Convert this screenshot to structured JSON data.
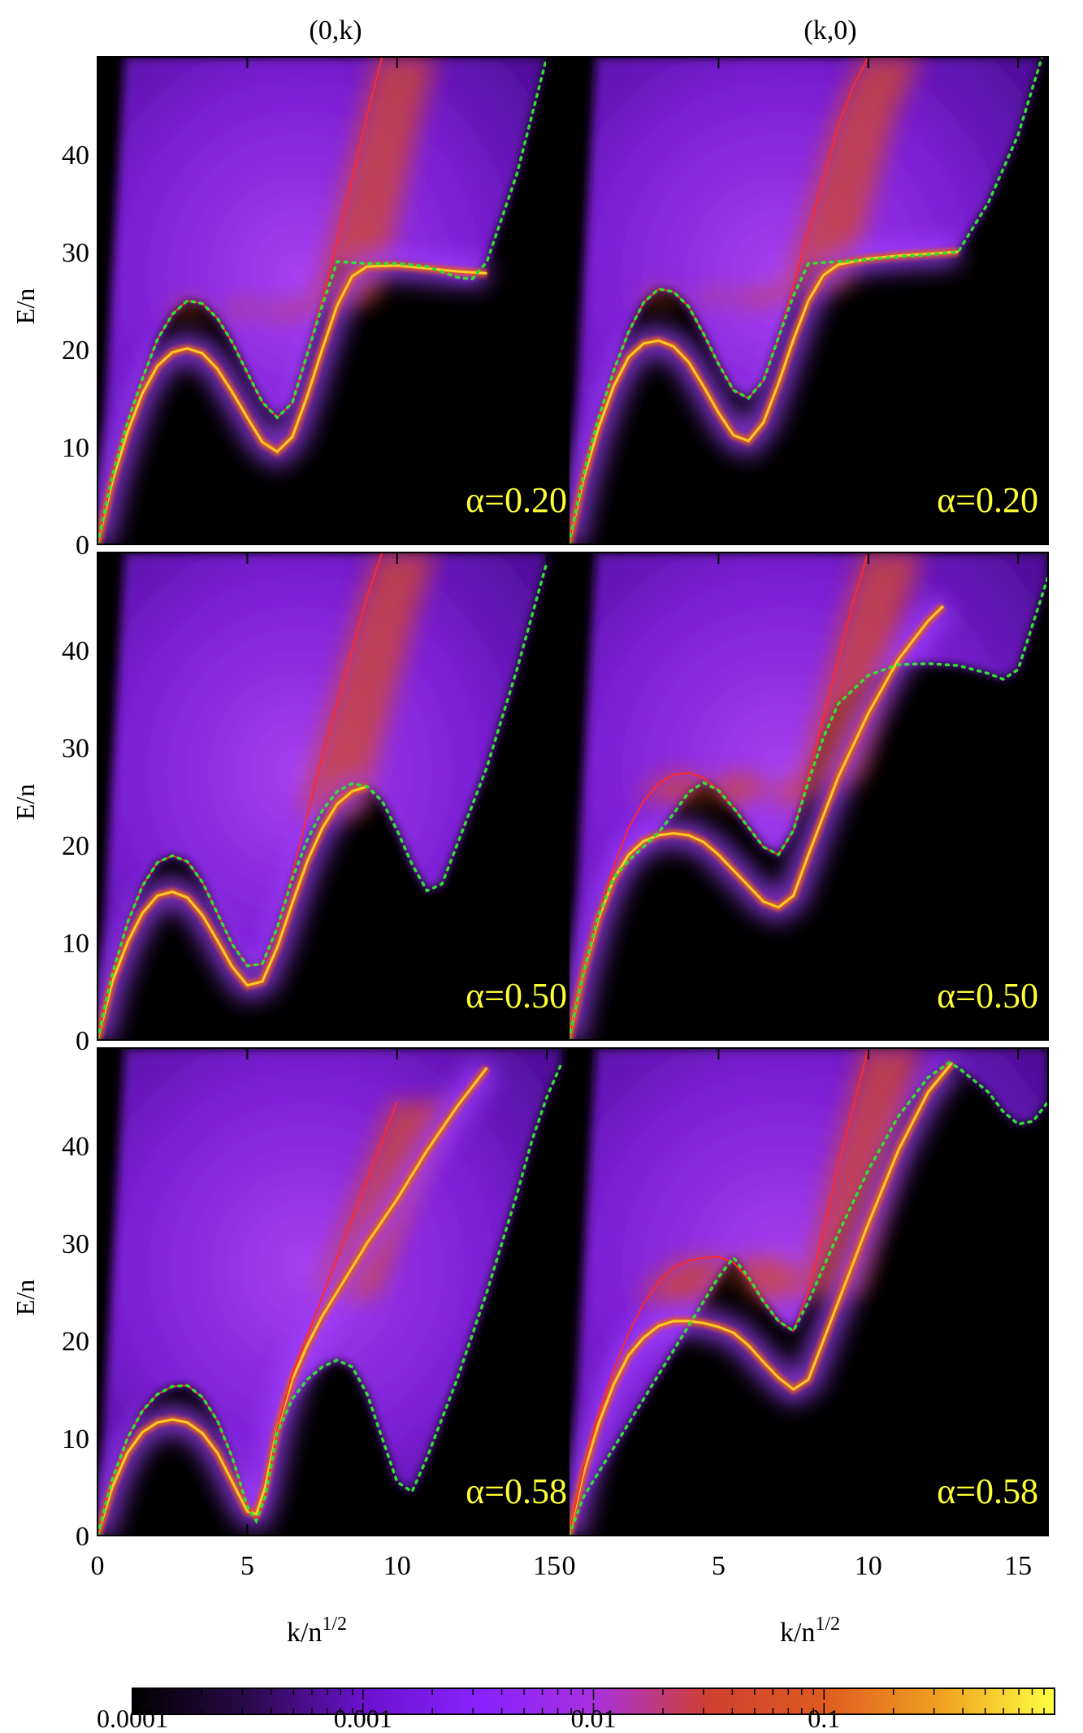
{
  "chart_data": [
    {
      "type": "heatmap",
      "column": "(0,k)",
      "annotation": "α=0.20",
      "xlabel": "k/n",
      "xlabel_superscript": "1/2",
      "ylabel": "E/n",
      "xlim": [
        0,
        16
      ],
      "ylim": [
        0,
        50
      ],
      "y_ticks": [
        "0",
        "10",
        "20",
        "30",
        "40"
      ],
      "x_ticks": [],
      "series": [
        {
          "name": "",
          "color": "#ffcc22",
          "x": [
            0,
            0.5,
            1,
            1.5,
            2,
            2.5,
            3,
            3.5,
            4,
            4.5,
            5,
            5.5,
            6,
            6.5,
            7,
            7.5,
            8,
            8.5,
            9,
            10,
            11,
            12,
            13
          ],
          "y": [
            0,
            6.5,
            11.5,
            15.5,
            18.3,
            19.7,
            20.1,
            19.6,
            18,
            15.6,
            13,
            10.5,
            9.5,
            11,
            15.2,
            20,
            24.5,
            27.5,
            28.5,
            28.6,
            28.3,
            28,
            27.8
          ]
        },
        {
          "name": "",
          "color": "#ff2a2a",
          "x": [
            0,
            0.5,
            1,
            1.5,
            2,
            2.5,
            3,
            3.5,
            4,
            4.5,
            5,
            5.5,
            6,
            6.5,
            7,
            7.5,
            8,
            8.5,
            9,
            9.5
          ],
          "y": [
            0,
            7,
            12.5,
            17,
            21,
            23.6,
            25,
            24.7,
            23.2,
            20.7,
            17.6,
            14.6,
            13,
            14.5,
            19.5,
            25,
            31,
            37.5,
            44,
            50
          ]
        },
        {
          "name": "",
          "color": "#33dd33",
          "x": [
            0,
            0.5,
            1,
            1.5,
            2,
            2.5,
            3,
            3.5,
            4,
            4.5,
            5,
            5.5,
            6,
            6.5,
            7,
            7.5,
            8,
            9,
            10,
            11,
            12,
            12.5,
            13,
            14,
            15
          ],
          "y": [
            0,
            7,
            12.5,
            17,
            21,
            23.6,
            25,
            24.7,
            23.2,
            20.7,
            17.6,
            14.6,
            13,
            14.5,
            19.5,
            24.5,
            29,
            28.8,
            28.8,
            28.5,
            27.4,
            27.2,
            29,
            38,
            50
          ]
        }
      ]
    },
    {
      "type": "heatmap",
      "column": "(k,0)",
      "annotation": "α=0.20",
      "xlabel": "k/n",
      "xlabel_superscript": "1/2",
      "ylabel": "",
      "xlim": [
        0,
        16
      ],
      "ylim": [
        0,
        50
      ],
      "y_ticks": [],
      "x_ticks": [],
      "series": [
        {
          "name": "",
          "color": "#ffcc22",
          "x": [
            0,
            0.5,
            1,
            1.5,
            2,
            2.5,
            3,
            3.5,
            4,
            4.5,
            5,
            5.5,
            6,
            6.5,
            7,
            7.5,
            8,
            8.5,
            9,
            10,
            11,
            12,
            13
          ],
          "y": [
            0,
            6.8,
            12,
            16.2,
            19.2,
            20.6,
            20.9,
            20.3,
            18.7,
            16.2,
            13.5,
            11.2,
            10.6,
            12.5,
            16.5,
            21,
            25,
            27.6,
            28.7,
            29.3,
            29.6,
            29.8,
            30
          ]
        },
        {
          "name": "",
          "color": "#ff2a2a",
          "x": [
            0,
            0.5,
            1,
            1.5,
            2,
            2.5,
            3,
            3.5,
            4,
            4.5,
            5,
            5.5,
            6,
            6.5,
            7,
            7.5,
            8,
            8.5,
            9,
            9.5,
            10
          ],
          "y": [
            0,
            7.2,
            13,
            17.8,
            21.8,
            24.8,
            26.2,
            25.9,
            24.4,
            21.6,
            18.5,
            15.8,
            15,
            16.8,
            21.2,
            26.5,
            32,
            37.5,
            43,
            47,
            50
          ]
        },
        {
          "name": "",
          "color": "#33dd33",
          "x": [
            0,
            0.5,
            1,
            1.5,
            2,
            2.5,
            3,
            3.5,
            4,
            4.5,
            5,
            5.5,
            6,
            6.5,
            7,
            7.5,
            8,
            9,
            10,
            11,
            12,
            13,
            14,
            15,
            15.8
          ],
          "y": [
            0,
            7.2,
            13,
            17.8,
            21.8,
            24.8,
            26.2,
            25.9,
            24.4,
            21.6,
            18.5,
            15.8,
            15,
            16.8,
            21.2,
            25.5,
            28.8,
            29,
            29.2,
            29.5,
            29.7,
            30,
            35,
            42,
            50
          ]
        }
      ]
    },
    {
      "type": "heatmap",
      "column": "(0,k)",
      "annotation": "α=0.50",
      "xlabel": "k/n",
      "xlabel_superscript": "1/2",
      "ylabel": "E/n",
      "xlim": [
        0,
        16
      ],
      "ylim": [
        0,
        50
      ],
      "y_ticks": [
        "0",
        "10",
        "20",
        "30",
        "40"
      ],
      "x_ticks": [],
      "series": [
        {
          "name": "",
          "color": "#ffcc22",
          "x": [
            0,
            0.5,
            1,
            1.5,
            2,
            2.5,
            3,
            3.5,
            4,
            4.5,
            5,
            5.5,
            6,
            6.5,
            7,
            7.5,
            8,
            8.5,
            9
          ],
          "y": [
            0,
            6,
            10,
            13,
            14.8,
            15.2,
            14.6,
            12.8,
            10.2,
            7.5,
            5.6,
            6,
            9.5,
            14,
            18.3,
            21.7,
            24.2,
            25.5,
            26
          ]
        },
        {
          "name": "",
          "color": "#ff2a2a",
          "x": [
            0,
            0.5,
            1,
            1.5,
            2,
            2.5,
            3,
            3.5,
            4,
            4.5,
            5,
            5.5,
            6,
            6.5,
            7,
            7.5,
            8,
            8.5,
            9,
            9.5
          ],
          "y": [
            0,
            6.8,
            12,
            15.8,
            18.2,
            18.9,
            18.3,
            16.2,
            13,
            9.8,
            7.6,
            7.8,
            11.5,
            17,
            23,
            29,
            34.5,
            40,
            45.5,
            50
          ]
        },
        {
          "name": "",
          "color": "#33dd33",
          "x": [
            0,
            0.5,
            1,
            1.5,
            2,
            2.5,
            3,
            3.5,
            4,
            4.5,
            5,
            5.5,
            6,
            6.5,
            7,
            7.5,
            8,
            8.5,
            9,
            9.5,
            10,
            10.5,
            11,
            11.5,
            12,
            13,
            14,
            15
          ],
          "y": [
            0,
            6.8,
            12,
            15.8,
            18.2,
            18.9,
            18.3,
            16.2,
            13,
            9.8,
            7.6,
            7.8,
            11.5,
            16.5,
            20.5,
            23.5,
            25.5,
            26.3,
            26,
            24.5,
            21.5,
            18,
            15.3,
            16,
            20,
            28,
            38,
            49
          ]
        }
      ]
    },
    {
      "type": "heatmap",
      "column": "(k,0)",
      "annotation": "α=0.50",
      "xlabel": "k/n",
      "xlabel_superscript": "1/2",
      "ylabel": "",
      "xlim": [
        0,
        16
      ],
      "ylim": [
        0,
        50
      ],
      "y_ticks": [],
      "x_ticks": [],
      "series": [
        {
          "name": "",
          "color": "#ffcc22",
          "x": [
            0,
            0.5,
            1,
            1.5,
            2,
            2.5,
            3,
            3.5,
            4,
            4.5,
            5,
            5.5,
            6,
            6.5,
            7,
            7.5,
            8,
            9,
            10,
            11,
            12,
            12.5
          ],
          "y": [
            0,
            7,
            12.5,
            16.5,
            19,
            20.4,
            21,
            21.2,
            21,
            20.3,
            19,
            17.4,
            15.8,
            14.2,
            13.6,
            14.8,
            19,
            27,
            33.5,
            39,
            43,
            44.5
          ]
        },
        {
          "name": "",
          "color": "#ff2a2a",
          "x": [
            0,
            0.5,
            1,
            1.5,
            2,
            2.5,
            3,
            3.5,
            4,
            4.5,
            5,
            5.5,
            6,
            6.5,
            7,
            7.5,
            8,
            8.5,
            9,
            9.5,
            10
          ],
          "y": [
            0,
            7,
            12.8,
            17.8,
            21.8,
            24.5,
            26.3,
            27.2,
            27.4,
            26.9,
            25.6,
            23.8,
            21.8,
            19.8,
            19,
            21.5,
            27,
            33,
            39,
            45,
            50
          ]
        },
        {
          "name": "",
          "color": "#33dd33",
          "x": [
            0,
            0.5,
            1,
            1.5,
            2,
            2.5,
            3,
            3.5,
            4,
            4.5,
            5,
            5.5,
            6,
            6.5,
            7,
            7.5,
            8,
            8.5,
            9,
            10,
            11,
            12,
            13,
            14,
            14.5,
            15,
            16
          ],
          "y": [
            0,
            7,
            12.8,
            16.6,
            18.4,
            19.8,
            21.3,
            23.2,
            25.4,
            26.4,
            25.6,
            23.8,
            21.8,
            19.8,
            19,
            21.5,
            26.5,
            31,
            34.5,
            37.4,
            38.5,
            38.6,
            38.4,
            37.6,
            37,
            38,
            47.5
          ]
        }
      ]
    },
    {
      "type": "heatmap",
      "column": "(0,k)",
      "annotation": "α=0.58",
      "xlabel": "k/n",
      "xlabel_superscript": "1/2",
      "ylabel": "E/n",
      "xlim": [
        0,
        16
      ],
      "ylim": [
        0,
        50
      ],
      "y_ticks": [
        "0",
        "10",
        "20",
        "30",
        "40"
      ],
      "x_ticks": [
        "0",
        "5",
        "10",
        "15"
      ],
      "series": [
        {
          "name": "",
          "color": "#ffcc22",
          "x": [
            0,
            0.5,
            1,
            1.5,
            2,
            2.5,
            3,
            3.5,
            4,
            4.5,
            5,
            5.3,
            5.6,
            6,
            6.5,
            7,
            7.5,
            8,
            9,
            10,
            11,
            12,
            13
          ],
          "y": [
            0,
            5,
            8.5,
            10.6,
            11.6,
            11.9,
            11.6,
            10.5,
            8.5,
            5.5,
            2.5,
            2.2,
            5,
            11,
            16,
            19.5,
            22.5,
            25,
            30,
            34.5,
            39.5,
            44,
            48
          ]
        },
        {
          "name": "",
          "color": "#ff2a2a",
          "x": [
            0,
            0.5,
            1,
            1.5,
            2,
            2.5,
            3,
            3.5,
            4,
            4.5,
            5,
            5.3,
            5.6,
            6,
            6.5,
            7,
            7.5,
            8,
            8.5,
            9,
            9.5,
            10
          ],
          "y": [
            0,
            5.8,
            10,
            12.8,
            14.5,
            15.3,
            15.4,
            14.2,
            11.8,
            8,
            3,
            1.5,
            4,
            11,
            16.5,
            20.5,
            24.5,
            28.5,
            32.5,
            36.5,
            40.5,
            44.5
          ]
        },
        {
          "name": "",
          "color": "#33dd33",
          "x": [
            0,
            0.5,
            1,
            1.5,
            2,
            2.5,
            3,
            3.5,
            4,
            4.5,
            5,
            5.3,
            5.6,
            6,
            6.5,
            7,
            7.5,
            8,
            8.5,
            9,
            9.5,
            10,
            10.5,
            11,
            12,
            13,
            14,
            14.5,
            15,
            15.5
          ],
          "y": [
            0,
            5.8,
            10,
            12.8,
            14.5,
            15.3,
            15.4,
            14.2,
            11.8,
            8,
            3,
            1.5,
            4,
            10.5,
            14,
            16,
            17.3,
            18,
            17.3,
            14.5,
            10,
            5.5,
            4.5,
            8,
            16,
            25,
            35,
            40.5,
            45,
            48.5
          ]
        }
      ]
    },
    {
      "type": "heatmap",
      "column": "(k,0)",
      "annotation": "α=0.58",
      "xlabel": "k/n",
      "xlabel_superscript": "1/2",
      "ylabel": "",
      "xlim": [
        0,
        16
      ],
      "ylim": [
        0,
        50
      ],
      "y_ticks": [],
      "x_ticks": [
        "0",
        "5",
        "10",
        "15"
      ],
      "series": [
        {
          "name": "",
          "color": "#ffcc22",
          "x": [
            0,
            0.5,
            1,
            1.5,
            2,
            2.5,
            3,
            3.5,
            4,
            4.5,
            5,
            5.5,
            6,
            6.5,
            7,
            7.5,
            8,
            9,
            10,
            11,
            12,
            12.8
          ],
          "y": [
            0,
            6.5,
            11.5,
            15.5,
            18.5,
            20.3,
            21.5,
            22,
            22,
            21.8,
            21.4,
            20.8,
            19.5,
            17.8,
            16.2,
            15,
            16,
            24,
            32,
            39.5,
            45.5,
            48.5
          ]
        },
        {
          "name": "",
          "color": "#ff2a2a",
          "x": [
            0,
            0.5,
            1,
            1.5,
            2,
            2.5,
            3,
            3.5,
            4,
            4.5,
            5,
            5.5,
            6,
            6.5,
            7,
            7.5,
            8,
            8.5,
            9,
            9.5,
            10
          ],
          "y": [
            0,
            7,
            12.5,
            17,
            20.8,
            23.8,
            26,
            27.5,
            28.2,
            28.5,
            28.6,
            28,
            26.3,
            24,
            22,
            21,
            25,
            31,
            38,
            44,
            50
          ]
        },
        {
          "name": "",
          "color": "#33dd33",
          "x": [
            0,
            0.5,
            1,
            1.5,
            2,
            2.5,
            3,
            3.5,
            4,
            4.5,
            5,
            5.5,
            6,
            6.5,
            7,
            7.5,
            8,
            9,
            10,
            11,
            12,
            12.7,
            13,
            14,
            14.5,
            15,
            15.5,
            16
          ],
          "y": [
            0,
            4,
            6.5,
            9,
            11.5,
            14,
            16.5,
            19,
            21.5,
            24,
            26.5,
            28.5,
            26.5,
            24,
            22,
            21,
            24,
            31,
            37.5,
            43,
            47,
            48.5,
            48,
            45.5,
            43.5,
            42.2,
            42.5,
            44.5
          ]
        }
      ]
    }
  ],
  "colorbar": {
    "ticks": [
      "0.0001",
      "0.001",
      "0.01",
      "0.1"
    ],
    "stops": [
      "#000000",
      "#2a0a4a",
      "#6a11cc",
      "#8822ff",
      "#a830e0",
      "#d04030",
      "#e05b20",
      "#f0a020",
      "#ffff40"
    ]
  }
}
